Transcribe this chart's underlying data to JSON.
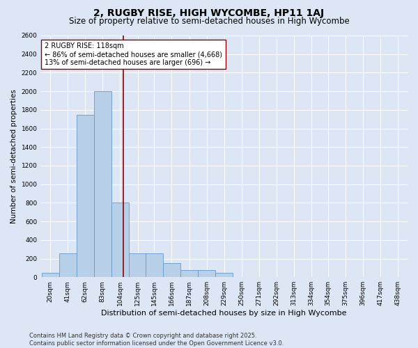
{
  "title": "2, RUGBY RISE, HIGH WYCOMBE, HP11 1AJ",
  "subtitle": "Size of property relative to semi-detached houses in High Wycombe",
  "xlabel": "Distribution of semi-detached houses by size in High Wycombe",
  "ylabel": "Number of semi-detached properties",
  "bins": [
    "20sqm",
    "41sqm",
    "62sqm",
    "83sqm",
    "104sqm",
    "125sqm",
    "145sqm",
    "166sqm",
    "187sqm",
    "208sqm",
    "229sqm",
    "250sqm",
    "271sqm",
    "292sqm",
    "313sqm",
    "334sqm",
    "354sqm",
    "375sqm",
    "396sqm",
    "417sqm",
    "438sqm"
  ],
  "bin_left_edges": [
    20,
    41,
    62,
    83,
    104,
    125,
    145,
    166,
    187,
    208,
    229,
    250,
    271,
    292,
    313,
    334,
    354,
    375,
    396,
    417,
    438
  ],
  "values": [
    50,
    255,
    1750,
    2000,
    800,
    255,
    255,
    150,
    75,
    75,
    50,
    0,
    0,
    0,
    0,
    0,
    0,
    0,
    0,
    0,
    0
  ],
  "bar_color": "#b8cfe8",
  "bar_edge_color": "#6699cc",
  "background_color": "#dce6f5",
  "grid_color": "#ffffff",
  "property_line_x": 118,
  "property_line_color": "#8b0000",
  "annotation_line1": "2 RUGBY RISE: 118sqm",
  "annotation_line2": "← 86% of semi-detached houses are smaller (4,668)",
  "annotation_line3": "13% of semi-detached houses are larger (696) →",
  "annotation_box_color": "#ffffff",
  "annotation_box_edge": "#8b0000",
  "ylim": [
    0,
    2600
  ],
  "yticks": [
    0,
    200,
    400,
    600,
    800,
    1000,
    1200,
    1400,
    1600,
    1800,
    2000,
    2200,
    2400,
    2600
  ],
  "footnote": "Contains HM Land Registry data © Crown copyright and database right 2025.\nContains public sector information licensed under the Open Government Licence v3.0.",
  "title_fontsize": 10,
  "subtitle_fontsize": 8.5,
  "xlabel_fontsize": 8,
  "ylabel_fontsize": 7.5,
  "tick_fontsize": 6.5,
  "annot_fontsize": 7,
  "footnote_fontsize": 6
}
